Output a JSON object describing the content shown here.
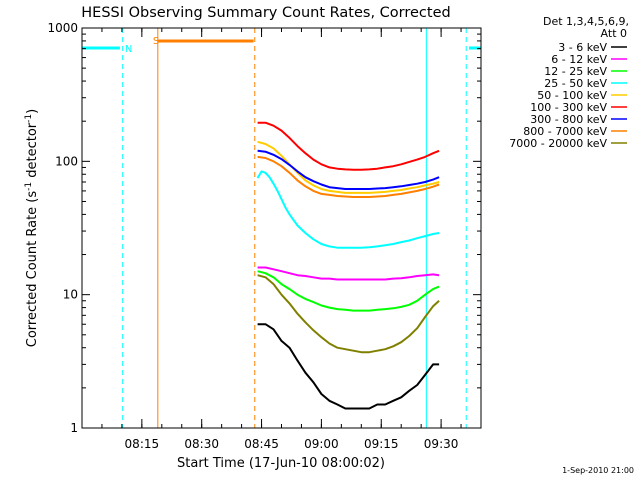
{
  "chart_data": {
    "type": "line",
    "title": "HESSI Observing Summary Count Rates, Corrected",
    "xlabel": "Start Time (17-Jun-10 08:00:02)",
    "ylabel_main": "Corrected Count Rate (s",
    "ylabel_sup1": "-1",
    "ylabel_mid": " detector",
    "ylabel_sup2": "-1",
    "ylabel_end": ")",
    "yscale": "log",
    "ylim": [
      1,
      1000
    ],
    "xlim_minutes": [
      0,
      100
    ],
    "x_ticks": [
      {
        "label": "08:15",
        "min": 15
      },
      {
        "label": "08:30",
        "min": 30
      },
      {
        "label": "08:45",
        "min": 45
      },
      {
        "label": "09:00",
        "min": 60
      },
      {
        "label": "09:15",
        "min": 75
      },
      {
        "label": "09:30",
        "min": 90
      }
    ],
    "y_ticks": [
      {
        "label": "1",
        "value": 1
      },
      {
        "label": "10",
        "value": 10
      },
      {
        "label": "100",
        "value": 100
      },
      {
        "label": "1000",
        "value": 1000
      }
    ],
    "legend_header": [
      "Det 1,3,4,5,6,9,",
      "Att 0"
    ],
    "legend_position": "top-right, outside plot",
    "series": [
      {
        "name": "3 - 6 keV",
        "color": "#000000",
        "x": [
          44,
          46,
          48,
          50,
          52,
          54,
          56,
          58,
          60,
          62,
          64,
          66,
          68,
          70,
          72,
          74,
          76,
          78,
          80,
          82,
          84,
          86,
          88,
          89.5
        ],
        "values": [
          6,
          6,
          5.5,
          4.5,
          4,
          3.2,
          2.6,
          2.2,
          1.8,
          1.6,
          1.5,
          1.4,
          1.4,
          1.4,
          1.4,
          1.5,
          1.5,
          1.6,
          1.7,
          1.9,
          2.1,
          2.5,
          3,
          3
        ]
      },
      {
        "name": "6 - 12 keV",
        "color": "#ff00ff",
        "x": [
          44,
          46,
          48,
          50,
          52,
          54,
          56,
          58,
          60,
          62,
          64,
          66,
          68,
          70,
          72,
          74,
          76,
          78,
          80,
          82,
          84,
          86,
          88,
          89.5
        ],
        "values": [
          16,
          16,
          15.5,
          15,
          14.5,
          14,
          13.8,
          13.5,
          13.2,
          13.2,
          13,
          13,
          13,
          13,
          13,
          13,
          13,
          13.2,
          13.3,
          13.5,
          13.8,
          14,
          14.2,
          14
        ]
      },
      {
        "name": "12 - 25 keV",
        "color": "#00ff00",
        "x": [
          44,
          46,
          48,
          50,
          52,
          54,
          56,
          58,
          60,
          62,
          64,
          66,
          68,
          70,
          72,
          74,
          76,
          78,
          80,
          82,
          84,
          86,
          88,
          89.5
        ],
        "values": [
          15,
          14.5,
          13.5,
          12,
          11,
          10,
          9.3,
          8.8,
          8.3,
          8,
          7.8,
          7.7,
          7.6,
          7.6,
          7.6,
          7.7,
          7.8,
          7.9,
          8.1,
          8.4,
          9,
          10,
          11,
          11.5
        ]
      },
      {
        "name": "25 - 50 keV",
        "color": "#00ffff",
        "x": [
          44,
          45,
          46,
          47,
          48,
          49,
          50,
          51,
          52,
          54,
          56,
          58,
          60,
          62,
          64,
          66,
          68,
          70,
          72,
          74,
          76,
          78,
          80,
          82,
          84,
          86,
          88,
          89.5
        ],
        "values": [
          75,
          84,
          82,
          76,
          68,
          60,
          52,
          45,
          40,
          33,
          29,
          26,
          24,
          23,
          22.5,
          22.5,
          22.5,
          22.5,
          22.7,
          23,
          23.5,
          24,
          24.8,
          25.5,
          26.5,
          27.5,
          28.5,
          29
        ]
      },
      {
        "name": "50 - 100 keV",
        "color": "#ffcc00",
        "x": [
          44,
          46,
          48,
          50,
          52,
          54,
          56,
          58,
          60,
          62,
          64,
          66,
          68,
          70,
          72,
          74,
          76,
          78,
          80,
          82,
          84,
          86,
          88,
          89.5
        ],
        "values": [
          140,
          135,
          125,
          110,
          95,
          82,
          72,
          66,
          62,
          60,
          59,
          58,
          58,
          58,
          58,
          58.5,
          59,
          60,
          61,
          62.5,
          64,
          66,
          68,
          70
        ]
      },
      {
        "name": "100 - 300 keV",
        "color": "#ff0000",
        "x": [
          44,
          46,
          48,
          50,
          52,
          54,
          56,
          58,
          60,
          62,
          64,
          66,
          68,
          70,
          72,
          74,
          76,
          78,
          80,
          82,
          84,
          86,
          88,
          89.5
        ],
        "values": [
          195,
          195,
          185,
          170,
          150,
          130,
          115,
          103,
          95,
          90,
          88,
          87,
          86.5,
          86.5,
          87,
          88,
          90,
          92,
          95,
          99,
          103,
          108,
          115,
          120
        ]
      },
      {
        "name": "300 - 800 keV",
        "color": "#0000ff",
        "x": [
          44,
          46,
          48,
          50,
          52,
          54,
          56,
          58,
          60,
          62,
          64,
          66,
          68,
          70,
          72,
          74,
          76,
          78,
          80,
          82,
          84,
          86,
          88,
          89.5
        ],
        "values": [
          120,
          118,
          112,
          104,
          94,
          84,
          76,
          71,
          67,
          64,
          63,
          62,
          62,
          62,
          62,
          62.5,
          63,
          64,
          65,
          66.5,
          68,
          70,
          73,
          76
        ]
      },
      {
        "name": "800 - 7000 keV",
        "color": "#ff8000",
        "x": [
          44,
          46,
          48,
          50,
          52,
          54,
          56,
          58,
          60,
          62,
          64,
          66,
          68,
          70,
          72,
          74,
          76,
          78,
          80,
          82,
          84,
          86,
          88,
          89.5
        ],
        "values": [
          108,
          106,
          100,
          92,
          82,
          72,
          65,
          60,
          57,
          56,
          55,
          54.5,
          54,
          54,
          54,
          54.5,
          55,
          56,
          57,
          58.5,
          60,
          62,
          64.5,
          67
        ]
      },
      {
        "name": "7000 - 20000 keV",
        "color": "#808000",
        "x": [
          44,
          46,
          48,
          50,
          52,
          54,
          56,
          58,
          60,
          62,
          64,
          66,
          68,
          70,
          72,
          74,
          76,
          78,
          80,
          82,
          84,
          86,
          88,
          89.5
        ],
        "values": [
          14,
          13.5,
          12,
          10,
          8.6,
          7.2,
          6.2,
          5.4,
          4.8,
          4.3,
          4,
          3.9,
          3.8,
          3.7,
          3.7,
          3.8,
          3.9,
          4.1,
          4.4,
          4.9,
          5.6,
          6.8,
          8.2,
          9
        ]
      }
    ],
    "saa_flags": [
      {
        "label": "N",
        "color": "#00ffff",
        "start_min": 10
      },
      {
        "label": "S",
        "color": "#ff8000",
        "start_min": 17
      }
    ]
  },
  "footer": {
    "timestamp": "1-Sep-2010 21:00"
  }
}
